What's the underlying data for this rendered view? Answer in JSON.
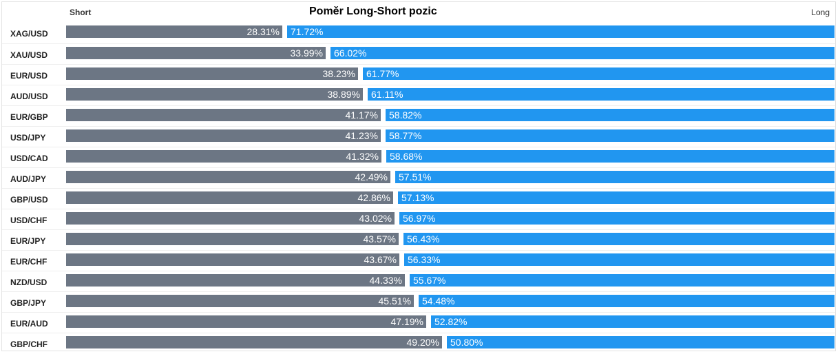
{
  "header": {
    "short_label": "Short",
    "title": "Poměr Long-Short pozic",
    "long_label": "Long"
  },
  "colors": {
    "short": "#6c7684",
    "long": "#2196f0"
  },
  "chart_data": {
    "type": "bar",
    "title": "Poměr Long-Short pozic",
    "orientation": "horizontal-stacked",
    "xlabel": "",
    "ylabel": "",
    "categories": [
      "XAG/USD",
      "XAU/USD",
      "EUR/USD",
      "AUD/USD",
      "EUR/GBP",
      "USD/JPY",
      "USD/CAD",
      "AUD/JPY",
      "GBP/USD",
      "USD/CHF",
      "EUR/JPY",
      "EUR/CHF",
      "NZD/USD",
      "GBP/JPY",
      "EUR/AUD",
      "GBP/CHF"
    ],
    "series": [
      {
        "name": "Short",
        "values": [
          28.31,
          33.99,
          38.23,
          38.89,
          41.17,
          41.23,
          41.32,
          42.49,
          42.86,
          43.02,
          43.57,
          43.67,
          44.33,
          45.51,
          47.19,
          49.2
        ]
      },
      {
        "name": "Long",
        "values": [
          71.72,
          66.02,
          61.77,
          61.11,
          58.82,
          58.77,
          58.68,
          57.51,
          57.13,
          56.97,
          56.43,
          56.33,
          55.67,
          54.48,
          52.82,
          50.8
        ]
      }
    ],
    "xlim": [
      0,
      100
    ],
    "grid": false,
    "legend": "top"
  }
}
